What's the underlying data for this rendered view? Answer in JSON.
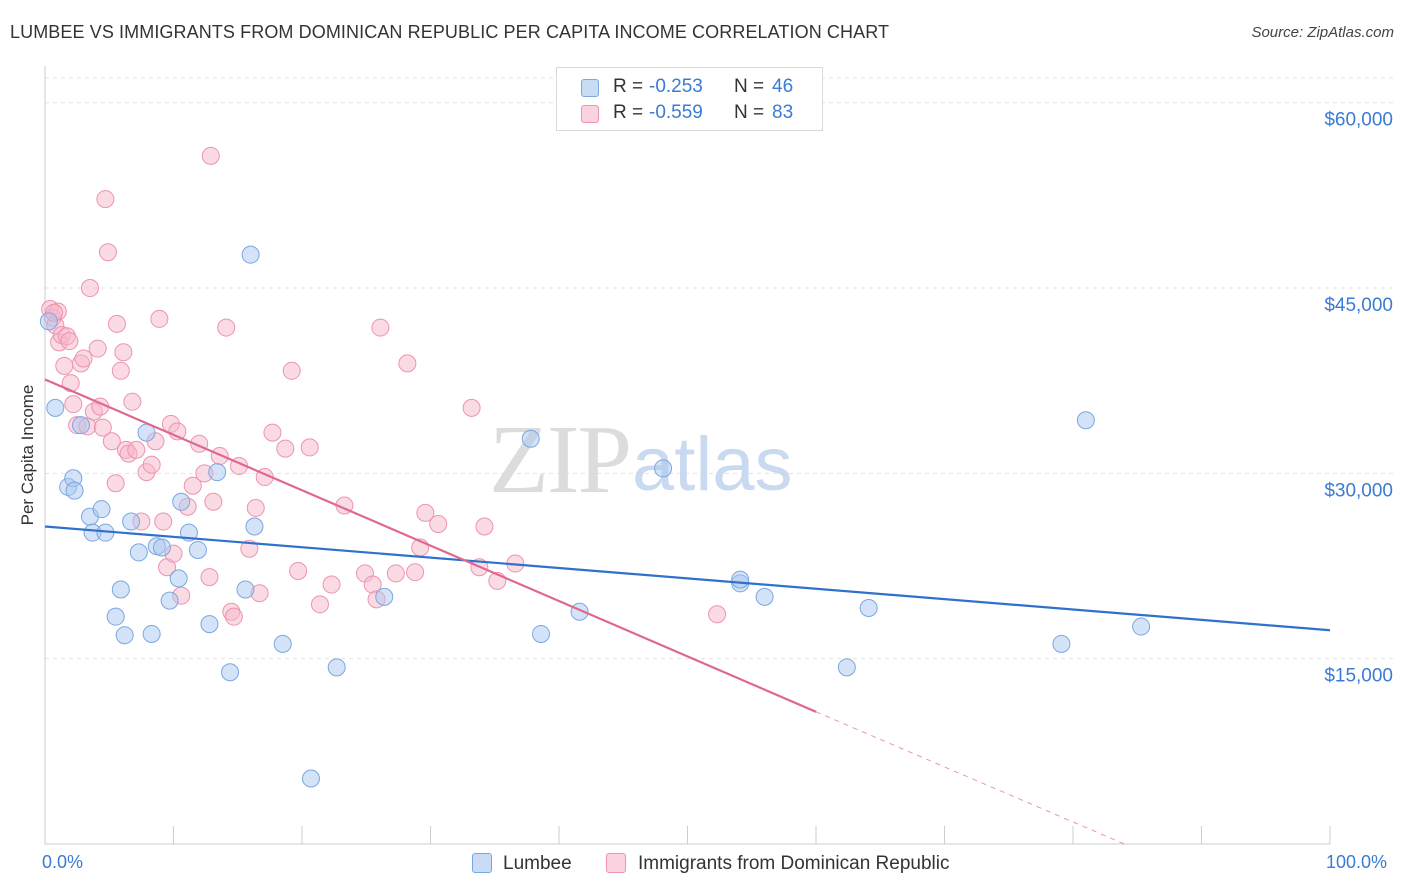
{
  "title": "LUMBEE VS IMMIGRANTS FROM DOMINICAN REPUBLIC PER CAPITA INCOME CORRELATION CHART",
  "source": "Source: ZipAtlas.com",
  "watermark": {
    "zip": "ZIP",
    "atlas": "atlas"
  },
  "stats": [
    {
      "r_label": "R =",
      "r_value": "-0.253",
      "n_label": "N =",
      "n_value": "46",
      "color": "#a9c8f0"
    },
    {
      "r_label": "R =",
      "r_value": "-0.559",
      "n_label": "N =",
      "n_value": "83",
      "color": "#f6b8ca"
    }
  ],
  "legend": [
    {
      "label": "Lumbee",
      "color": "#a9c8f0"
    },
    {
      "label": "Immigrants from Dominican Republic",
      "color": "#f6b8ca"
    }
  ],
  "x_axis": {
    "min_label": "0.0%",
    "max_label": "100.0%"
  },
  "chart_data": {
    "type": "scatter",
    "title": "LUMBEE VS IMMIGRANTS FROM DOMINICAN REPUBLIC PER CAPITA INCOME CORRELATION CHART",
    "xlabel": "",
    "ylabel": "Per Capita Income",
    "xlim": [
      0,
      100
    ],
    "ylim": [
      0,
      62000
    ],
    "y_ticks": [
      15000,
      30000,
      45000,
      60000
    ],
    "y_tick_labels": [
      "$15,000",
      "$30,000",
      "$45,000",
      "$60,000"
    ],
    "grid": true,
    "colors": {
      "blue": "#3a7bd5",
      "blue_line": "#2f72cc",
      "pink_line": "#e06890",
      "tick_text": "#3a7bd5"
    },
    "series": [
      {
        "name": "Lumbee",
        "marker_fill": "rgba(169,200,240,0.5)",
        "marker_stroke": "#7ba7e0",
        "trend": {
          "x": [
            0,
            100
          ],
          "y": [
            25700,
            17300
          ],
          "dashed_from": null
        },
        "points": [
          [
            0.3,
            42300
          ],
          [
            0.8,
            35300
          ],
          [
            1.8,
            28900
          ],
          [
            2.2,
            29600
          ],
          [
            2.3,
            28600
          ],
          [
            2.8,
            33900
          ],
          [
            3.5,
            26500
          ],
          [
            3.7,
            25200
          ],
          [
            4.4,
            27100
          ],
          [
            4.7,
            25200
          ],
          [
            5.5,
            18400
          ],
          [
            5.9,
            20600
          ],
          [
            6.2,
            16900
          ],
          [
            6.7,
            26100
          ],
          [
            7.3,
            23600
          ],
          [
            7.9,
            33300
          ],
          [
            8.3,
            17000
          ],
          [
            8.7,
            24100
          ],
          [
            9.1,
            24000
          ],
          [
            9.7,
            19700
          ],
          [
            10.4,
            21500
          ],
          [
            10.6,
            27700
          ],
          [
            11.2,
            25200
          ],
          [
            11.9,
            23800
          ],
          [
            12.8,
            17800
          ],
          [
            13.4,
            30100
          ],
          [
            14.4,
            13900
          ],
          [
            15.6,
            20600
          ],
          [
            16.0,
            47700
          ],
          [
            16.3,
            25700
          ],
          [
            18.5,
            16200
          ],
          [
            20.7,
            5300
          ],
          [
            22.7,
            14300
          ],
          [
            26.4,
            20000
          ],
          [
            37.8,
            32800
          ],
          [
            38.6,
            17000
          ],
          [
            41.6,
            18800
          ],
          [
            48.1,
            30400
          ],
          [
            54.1,
            21100
          ],
          [
            54.1,
            21400
          ],
          [
            56.0,
            20000
          ],
          [
            62.4,
            14300
          ],
          [
            64.1,
            19100
          ],
          [
            79.1,
            16200
          ],
          [
            81.0,
            34300
          ],
          [
            85.3,
            17600
          ]
        ]
      },
      {
        "name": "Immigrants from Dominican Republic",
        "marker_fill": "rgba(246,184,202,0.5)",
        "marker_stroke": "#ee93b0",
        "trend": {
          "x": [
            0,
            60
          ],
          "y": [
            37600,
            10700
          ],
          "dashed_to": [
            84,
            0
          ]
        },
        "points": [
          [
            0.4,
            43300
          ],
          [
            0.6,
            42600
          ],
          [
            0.8,
            42000
          ],
          [
            1.0,
            43100
          ],
          [
            1.1,
            40600
          ],
          [
            1.3,
            41200
          ],
          [
            1.5,
            38700
          ],
          [
            1.7,
            41100
          ],
          [
            1.9,
            40700
          ],
          [
            2.0,
            37300
          ],
          [
            2.2,
            35600
          ],
          [
            2.5,
            33900
          ],
          [
            2.8,
            38900
          ],
          [
            3.0,
            39300
          ],
          [
            3.3,
            33800
          ],
          [
            3.5,
            45000
          ],
          [
            3.8,
            35000
          ],
          [
            4.1,
            40100
          ],
          [
            4.3,
            35400
          ],
          [
            4.5,
            33700
          ],
          [
            4.7,
            52200
          ],
          [
            4.9,
            47900
          ],
          [
            5.2,
            32600
          ],
          [
            5.5,
            29200
          ],
          [
            5.6,
            42100
          ],
          [
            5.9,
            38300
          ],
          [
            6.1,
            39800
          ],
          [
            6.3,
            31900
          ],
          [
            6.5,
            31600
          ],
          [
            6.8,
            35800
          ],
          [
            7.1,
            31900
          ],
          [
            7.5,
            26100
          ],
          [
            7.9,
            30100
          ],
          [
            8.3,
            30700
          ],
          [
            8.6,
            32600
          ],
          [
            8.9,
            42500
          ],
          [
            9.2,
            26100
          ],
          [
            9.5,
            22400
          ],
          [
            9.8,
            34000
          ],
          [
            10.0,
            23500
          ],
          [
            10.3,
            33400
          ],
          [
            10.6,
            20100
          ],
          [
            11.1,
            27300
          ],
          [
            11.5,
            29000
          ],
          [
            12.0,
            32400
          ],
          [
            12.4,
            30000
          ],
          [
            12.8,
            21600
          ],
          [
            12.9,
            55700
          ],
          [
            13.1,
            27700
          ],
          [
            13.6,
            31400
          ],
          [
            14.1,
            41800
          ],
          [
            14.5,
            18800
          ],
          [
            14.7,
            18400
          ],
          [
            15.1,
            30600
          ],
          [
            15.9,
            23900
          ],
          [
            16.4,
            27200
          ],
          [
            16.7,
            20300
          ],
          [
            17.1,
            29700
          ],
          [
            17.7,
            33300
          ],
          [
            18.7,
            32000
          ],
          [
            19.2,
            38300
          ],
          [
            19.7,
            22100
          ],
          [
            20.6,
            32100
          ],
          [
            21.4,
            19400
          ],
          [
            22.3,
            21000
          ],
          [
            23.3,
            27400
          ],
          [
            24.9,
            21900
          ],
          [
            25.5,
            21000
          ],
          [
            25.8,
            19800
          ],
          [
            26.1,
            41800
          ],
          [
            27.3,
            21900
          ],
          [
            28.2,
            38900
          ],
          [
            28.8,
            22000
          ],
          [
            29.2,
            24000
          ],
          [
            29.6,
            26800
          ],
          [
            30.6,
            25900
          ],
          [
            33.2,
            35300
          ],
          [
            33.8,
            22400
          ],
          [
            34.2,
            25700
          ],
          [
            35.2,
            21300
          ],
          [
            36.6,
            22700
          ],
          [
            52.3,
            18600
          ],
          [
            0.7,
            43000
          ]
        ]
      }
    ]
  }
}
